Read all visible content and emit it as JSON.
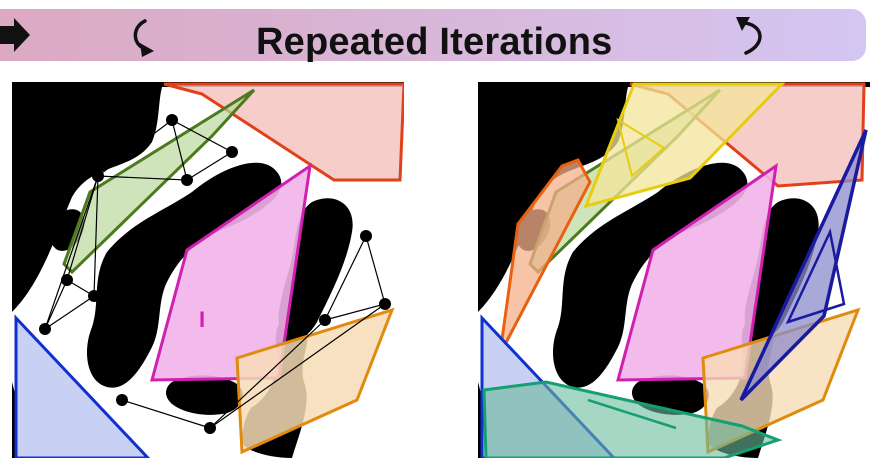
{
  "header": {
    "title": "Repeated Iterations",
    "left_icon": "arrow-right-icon",
    "middle_icon": "rotate-ccw-icon",
    "right_icon": "rotate-cw-icon"
  },
  "panels": {
    "left": {
      "label": "I"
    }
  },
  "colors": {
    "banner_start": "#dca9c3",
    "banner_end": "#d3c6f2",
    "obstacle": "#000000",
    "green": "#4c7a1e",
    "red": "#e0401a",
    "magenta": "#d020b0",
    "blue": "#1030d0",
    "orange": "#e08a10",
    "yellow": "#e8cc10",
    "dark_orange": "#e86010",
    "teal": "#14a070",
    "navy": "#1a1aa0"
  }
}
